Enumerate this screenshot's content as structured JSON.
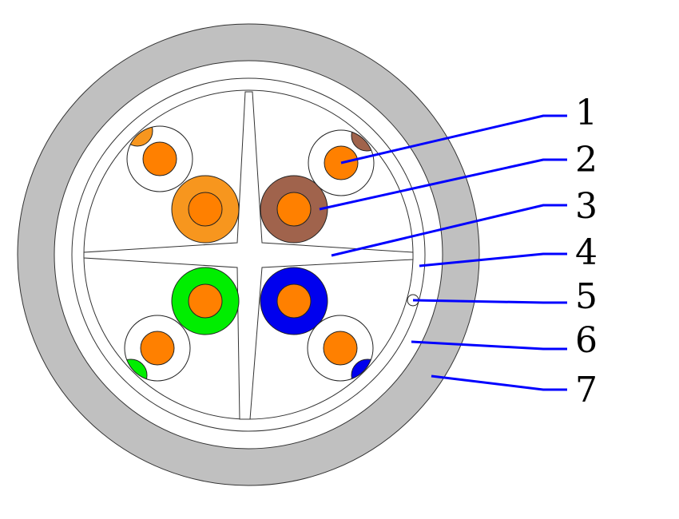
{
  "colors": {
    "jacket": "#c0c0c0",
    "conductor": "#ff8000",
    "pair_orange": "#f7961e",
    "pair_brown": "#a0634c",
    "pair_green": "#00ee00",
    "pair_blue": "#0000ee",
    "leader": "#0000ff"
  },
  "labels": [
    "1",
    "2",
    "3",
    "4",
    "5",
    "6",
    "7"
  ]
}
